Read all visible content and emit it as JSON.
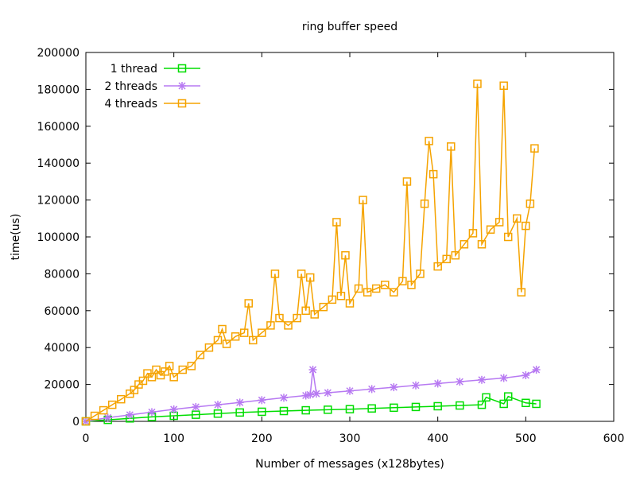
{
  "chart_data": {
    "type": "line",
    "title": "ring buffer speed",
    "xlabel": "Number of messages (x128bytes)",
    "ylabel": "time(us)",
    "xlim": [
      0,
      600
    ],
    "ylim": [
      0,
      200000
    ],
    "xticks": [
      0,
      100,
      200,
      300,
      400,
      500,
      600
    ],
    "yticks": [
      0,
      20000,
      40000,
      60000,
      80000,
      100000,
      120000,
      140000,
      160000,
      180000,
      200000
    ],
    "grid": false,
    "legend_position": "top-left",
    "series": [
      {
        "name": "1 thread",
        "color": "#00dd00",
        "marker": "square",
        "x": [
          0,
          25,
          50,
          75,
          100,
          125,
          150,
          175,
          200,
          225,
          250,
          275,
          300,
          325,
          350,
          375,
          400,
          425,
          450,
          455,
          475,
          480,
          500,
          512
        ],
        "y": [
          0,
          800,
          1600,
          2400,
          3000,
          3600,
          4200,
          4800,
          5200,
          5600,
          6000,
          6300,
          6600,
          7000,
          7400,
          7800,
          8200,
          8600,
          9000,
          13000,
          9500,
          13500,
          10000,
          9500
        ]
      },
      {
        "name": "2 threads",
        "color": "#b779f2",
        "marker": "asterisk",
        "x": [
          0,
          25,
          50,
          75,
          100,
          125,
          150,
          175,
          200,
          225,
          250,
          255,
          258,
          262,
          275,
          300,
          325,
          350,
          375,
          400,
          425,
          450,
          475,
          500,
          512
        ],
        "y": [
          0,
          2000,
          3500,
          5000,
          6500,
          7800,
          9000,
          10200,
          11500,
          12800,
          14000,
          14500,
          28000,
          15000,
          15500,
          16500,
          17500,
          18500,
          19500,
          20500,
          21500,
          22500,
          23500,
          25000,
          28000
        ]
      },
      {
        "name": "4 threads",
        "color": "#f5a300",
        "marker": "square",
        "x": [
          0,
          10,
          20,
          30,
          40,
          50,
          55,
          60,
          65,
          70,
          75,
          80,
          85,
          90,
          95,
          100,
          110,
          120,
          130,
          140,
          150,
          155,
          160,
          170,
          180,
          185,
          190,
          200,
          210,
          215,
          220,
          230,
          240,
          245,
          250,
          255,
          260,
          270,
          280,
          285,
          290,
          295,
          300,
          310,
          315,
          320,
          330,
          340,
          350,
          360,
          365,
          370,
          380,
          385,
          390,
          395,
          400,
          410,
          415,
          420,
          430,
          440,
          445,
          450,
          460,
          470,
          475,
          480,
          490,
          495,
          500,
          505,
          510
        ],
        "y": [
          0,
          3000,
          6000,
          9000,
          12000,
          15000,
          17000,
          20000,
          22000,
          26000,
          24000,
          28000,
          25000,
          27000,
          30000,
          24000,
          28000,
          30000,
          36000,
          40000,
          44000,
          50000,
          42000,
          46000,
          48000,
          64000,
          44000,
          48000,
          52000,
          80000,
          56000,
          52000,
          56000,
          80000,
          60000,
          78000,
          58000,
          62000,
          66000,
          108000,
          68000,
          90000,
          64000,
          72000,
          120000,
          70000,
          72000,
          74000,
          70000,
          76000,
          130000,
          74000,
          80000,
          118000,
          152000,
          134000,
          84000,
          88000,
          149000,
          90000,
          96000,
          102000,
          183000,
          96000,
          104000,
          108000,
          182000,
          100000,
          110000,
          70000,
          106000,
          118000,
          148000
        ]
      }
    ]
  }
}
